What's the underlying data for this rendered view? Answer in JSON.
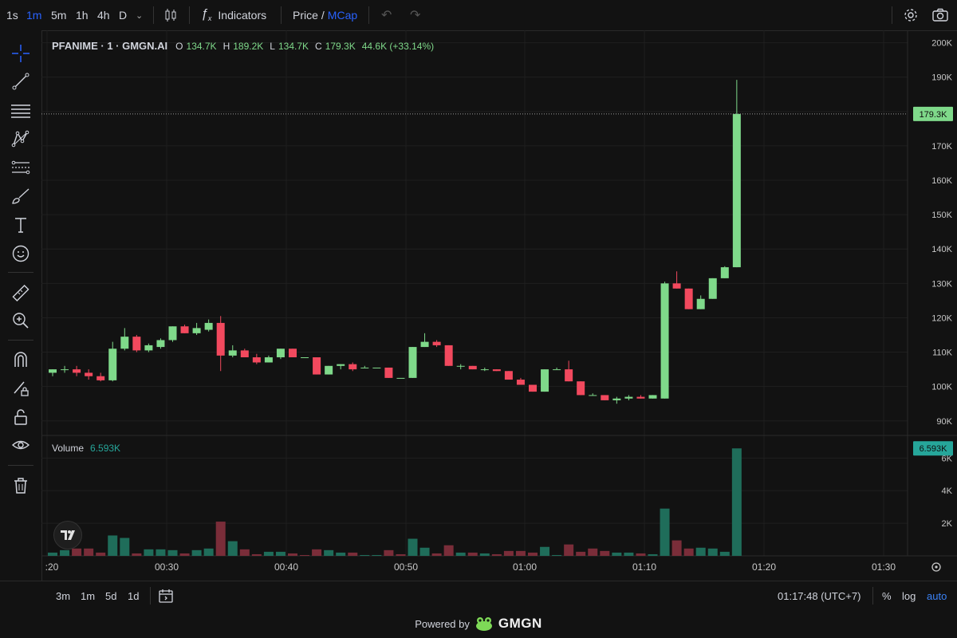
{
  "toolbar": {
    "intervals": [
      "1s",
      "1m",
      "5m",
      "1h",
      "4h",
      "D"
    ],
    "active_interval": "1m",
    "indicators_label": "Indicators",
    "price_label": "Price",
    "slash": "/",
    "mcap_label": "MCap"
  },
  "legend": {
    "symbol": "PFANIME · 1 · GMGN.AI",
    "open_key": "O",
    "open": "134.7K",
    "high_key": "H",
    "high": "189.2K",
    "low_key": "L",
    "low": "134.7K",
    "close_key": "C",
    "close": "179.3K",
    "change": "44.6K (+33.14%)"
  },
  "volume_legend": {
    "label": "Volume",
    "value": "6.593K"
  },
  "price_axis": {
    "labels": [
      "200K",
      "190K",
      "180K",
      "170K",
      "160K",
      "150K",
      "140K",
      "130K",
      "120K",
      "110K",
      "100K",
      "90K"
    ],
    "last_price_tag": "179.3K",
    "volume_labels": [
      "6K",
      "4K",
      "2K"
    ],
    "volume_tag": "6.593K"
  },
  "time_axis": {
    "labels": [
      ":20",
      "00:30",
      "00:40",
      "00:50",
      "01:00",
      "01:10",
      "01:20",
      "01:30"
    ]
  },
  "bottom": {
    "ranges": [
      "3m",
      "1m",
      "5d",
      "1d"
    ],
    "clock": "01:17:48 (UTC+7)",
    "percent": "%",
    "log": "log",
    "auto": "auto"
  },
  "powered_by": {
    "text": "Powered by",
    "brand": "GMGN"
  },
  "colors": {
    "up": "#7fd98a",
    "down": "#f2495e",
    "vol_up": "#1f6d5a",
    "vol_down": "#7a2d39",
    "accent": "#2962ff",
    "auto": "#3b82f6"
  },
  "chart_data": {
    "type": "candlestick",
    "x_unit": "minute",
    "x_labels": [
      ":20",
      "00:30",
      "00:40",
      "00:50",
      "01:00",
      "01:10",
      "01:20",
      "01:30"
    ],
    "ylim": [
      86000,
      202000
    ],
    "candles": [
      {
        "o": 104000,
        "h": 105000,
        "l": 103000,
        "c": 105000
      },
      {
        "o": 105000,
        "h": 106000,
        "l": 104000,
        "c": 105000
      },
      {
        "o": 105000,
        "h": 106000,
        "l": 103000,
        "c": 104000
      },
      {
        "o": 104000,
        "h": 105000,
        "l": 102000,
        "c": 103000
      },
      {
        "o": 103000,
        "h": 104000,
        "l": 101500,
        "c": 101800
      },
      {
        "o": 101800,
        "h": 113000,
        "l": 101500,
        "c": 111000
      },
      {
        "o": 111000,
        "h": 117000,
        "l": 110500,
        "c": 114500
      },
      {
        "o": 114500,
        "h": 115000,
        "l": 110000,
        "c": 110500
      },
      {
        "o": 110500,
        "h": 112500,
        "l": 110000,
        "c": 112000
      },
      {
        "o": 111500,
        "h": 114000,
        "l": 111000,
        "c": 113500
      },
      {
        "o": 113500,
        "h": 117500,
        "l": 113000,
        "c": 117500
      },
      {
        "o": 117500,
        "h": 118000,
        "l": 115500,
        "c": 115500
      },
      {
        "o": 115500,
        "h": 118500,
        "l": 115000,
        "c": 117000
      },
      {
        "o": 116500,
        "h": 119500,
        "l": 116000,
        "c": 118500
      },
      {
        "o": 118500,
        "h": 120500,
        "l": 104500,
        "c": 109000
      },
      {
        "o": 109000,
        "h": 112000,
        "l": 108500,
        "c": 110500
      },
      {
        "o": 110500,
        "h": 111000,
        "l": 108500,
        "c": 108500
      },
      {
        "o": 108500,
        "h": 109500,
        "l": 106500,
        "c": 107000
      },
      {
        "o": 107000,
        "h": 109000,
        "l": 107000,
        "c": 108500
      },
      {
        "o": 108500,
        "h": 111000,
        "l": 108000,
        "c": 111000
      },
      {
        "o": 111000,
        "h": 111000,
        "l": 108500,
        "c": 108500
      },
      {
        "o": 108500,
        "h": 108500,
        "l": 108500,
        "c": 108500
      },
      {
        "o": 108500,
        "h": 108500,
        "l": 103500,
        "c": 103500
      },
      {
        "o": 103500,
        "h": 106000,
        "l": 103500,
        "c": 106000
      },
      {
        "o": 106000,
        "h": 106500,
        "l": 105000,
        "c": 106500
      },
      {
        "o": 106500,
        "h": 107000,
        "l": 104500,
        "c": 105000
      },
      {
        "o": 105500,
        "h": 106000,
        "l": 105500,
        "c": 105500
      },
      {
        "o": 105500,
        "h": 105500,
        "l": 105500,
        "c": 105500
      },
      {
        "o": 105500,
        "h": 105500,
        "l": 102500,
        "c": 102500
      },
      {
        "o": 102500,
        "h": 102500,
        "l": 102500,
        "c": 102500
      },
      {
        "o": 102500,
        "h": 111500,
        "l": 102500,
        "c": 111500
      },
      {
        "o": 111500,
        "h": 115500,
        "l": 111500,
        "c": 113000
      },
      {
        "o": 113000,
        "h": 113500,
        "l": 111500,
        "c": 112000
      },
      {
        "o": 112000,
        "h": 112000,
        "l": 106000,
        "c": 106000
      },
      {
        "o": 106000,
        "h": 106500,
        "l": 105000,
        "c": 106000
      },
      {
        "o": 106000,
        "h": 106000,
        "l": 105000,
        "c": 105000
      },
      {
        "o": 105000,
        "h": 105500,
        "l": 104500,
        "c": 105000
      },
      {
        "o": 105000,
        "h": 105000,
        "l": 104500,
        "c": 104500
      },
      {
        "o": 104500,
        "h": 104500,
        "l": 102000,
        "c": 102000
      },
      {
        "o": 102000,
        "h": 102500,
        "l": 100500,
        "c": 100500
      },
      {
        "o": 100500,
        "h": 100500,
        "l": 98500,
        "c": 98500
      },
      {
        "o": 98500,
        "h": 105000,
        "l": 98500,
        "c": 105000
      },
      {
        "o": 105000,
        "h": 105500,
        "l": 105000,
        "c": 105000
      },
      {
        "o": 105000,
        "h": 107500,
        "l": 101500,
        "c": 101500
      },
      {
        "o": 101500,
        "h": 101500,
        "l": 97500,
        "c": 97500
      },
      {
        "o": 97500,
        "h": 98000,
        "l": 97500,
        "c": 97500
      },
      {
        "o": 97500,
        "h": 97500,
        "l": 96000,
        "c": 96000
      },
      {
        "o": 96000,
        "h": 97000,
        "l": 95000,
        "c": 96500
      },
      {
        "o": 96500,
        "h": 97500,
        "l": 96000,
        "c": 97000
      },
      {
        "o": 97000,
        "h": 97500,
        "l": 96500,
        "c": 96500
      },
      {
        "o": 96500,
        "h": 97500,
        "l": 96500,
        "c": 97500
      },
      {
        "o": 96500,
        "h": 130500,
        "l": 96500,
        "c": 130000
      },
      {
        "o": 130000,
        "h": 133500,
        "l": 128500,
        "c": 128500
      },
      {
        "o": 128500,
        "h": 128500,
        "l": 122500,
        "c": 122500
      },
      {
        "o": 122500,
        "h": 126500,
        "l": 122500,
        "c": 125500
      },
      {
        "o": 125500,
        "h": 131500,
        "l": 125500,
        "c": 131500
      },
      {
        "o": 131500,
        "h": 135000,
        "l": 131500,
        "c": 134700
      },
      {
        "o": 134700,
        "h": 189200,
        "l": 134700,
        "c": 179300
      }
    ],
    "volume_ylim": [
      0,
      6800
    ],
    "volume": [
      {
        "v": 200,
        "up": true
      },
      {
        "v": 350,
        "up": true
      },
      {
        "v": 450,
        "up": false
      },
      {
        "v": 450,
        "up": false
      },
      {
        "v": 200,
        "up": false
      },
      {
        "v": 1250,
        "up": true
      },
      {
        "v": 1100,
        "up": true
      },
      {
        "v": 150,
        "up": false
      },
      {
        "v": 400,
        "up": true
      },
      {
        "v": 400,
        "up": true
      },
      {
        "v": 350,
        "up": true
      },
      {
        "v": 150,
        "up": false
      },
      {
        "v": 350,
        "up": true
      },
      {
        "v": 450,
        "up": true
      },
      {
        "v": 2100,
        "up": false
      },
      {
        "v": 900,
        "up": true
      },
      {
        "v": 400,
        "up": false
      },
      {
        "v": 100,
        "up": false
      },
      {
        "v": 250,
        "up": true
      },
      {
        "v": 250,
        "up": true
      },
      {
        "v": 150,
        "up": false
      },
      {
        "v": 50,
        "up": false
      },
      {
        "v": 400,
        "up": false
      },
      {
        "v": 350,
        "up": true
      },
      {
        "v": 200,
        "up": true
      },
      {
        "v": 200,
        "up": false
      },
      {
        "v": 50,
        "up": true
      },
      {
        "v": 50,
        "up": true
      },
      {
        "v": 350,
        "up": false
      },
      {
        "v": 100,
        "up": false
      },
      {
        "v": 1050,
        "up": true
      },
      {
        "v": 500,
        "up": true
      },
      {
        "v": 150,
        "up": false
      },
      {
        "v": 650,
        "up": false
      },
      {
        "v": 200,
        "up": true
      },
      {
        "v": 200,
        "up": false
      },
      {
        "v": 150,
        "up": true
      },
      {
        "v": 100,
        "up": false
      },
      {
        "v": 300,
        "up": false
      },
      {
        "v": 300,
        "up": false
      },
      {
        "v": 200,
        "up": false
      },
      {
        "v": 550,
        "up": true
      },
      {
        "v": 50,
        "up": true
      },
      {
        "v": 700,
        "up": false
      },
      {
        "v": 250,
        "up": false
      },
      {
        "v": 450,
        "up": false
      },
      {
        "v": 300,
        "up": false
      },
      {
        "v": 200,
        "up": true
      },
      {
        "v": 200,
        "up": true
      },
      {
        "v": 150,
        "up": false
      },
      {
        "v": 100,
        "up": true
      },
      {
        "v": 2900,
        "up": true
      },
      {
        "v": 950,
        "up": false
      },
      {
        "v": 450,
        "up": false
      },
      {
        "v": 500,
        "up": true
      },
      {
        "v": 450,
        "up": true
      },
      {
        "v": 250,
        "up": true
      },
      {
        "v": 6593,
        "up": true
      }
    ]
  }
}
